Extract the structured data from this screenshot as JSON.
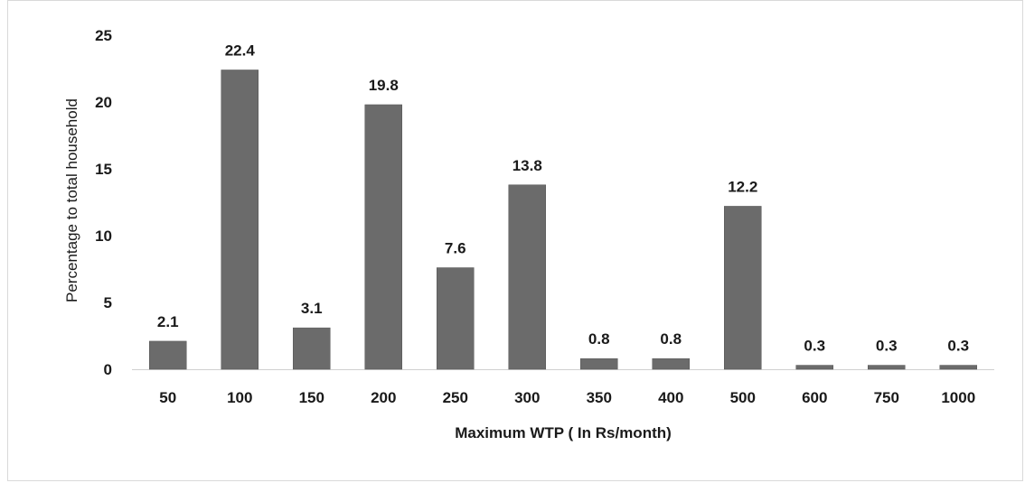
{
  "chart_data": {
    "type": "bar",
    "categories": [
      "50",
      "100",
      "150",
      "200",
      "250",
      "300",
      "350",
      "400",
      "500",
      "600",
      "750",
      "1000"
    ],
    "values": [
      2.1,
      22.4,
      3.1,
      19.8,
      7.6,
      13.8,
      0.8,
      0.8,
      12.2,
      0.3,
      0.3,
      0.3
    ],
    "data_labels": [
      "2.1",
      "22.4",
      "3.1",
      "19.8",
      "7.6",
      "13.8",
      "0.8",
      "0.8",
      "12.2",
      "0.3",
      "0.3",
      "0.3"
    ],
    "xlabel": "Maximum WTP ( In Rs/month)",
    "ylabel": "Percentage to total household",
    "ylim": [
      0,
      25
    ],
    "yticks": [
      "0",
      "5",
      "10",
      "15",
      "20",
      "25"
    ],
    "grid": false,
    "colors": {
      "bar": "#6b6b6b",
      "bar_edge": "#555555",
      "axis": "#d0d0d0"
    }
  }
}
